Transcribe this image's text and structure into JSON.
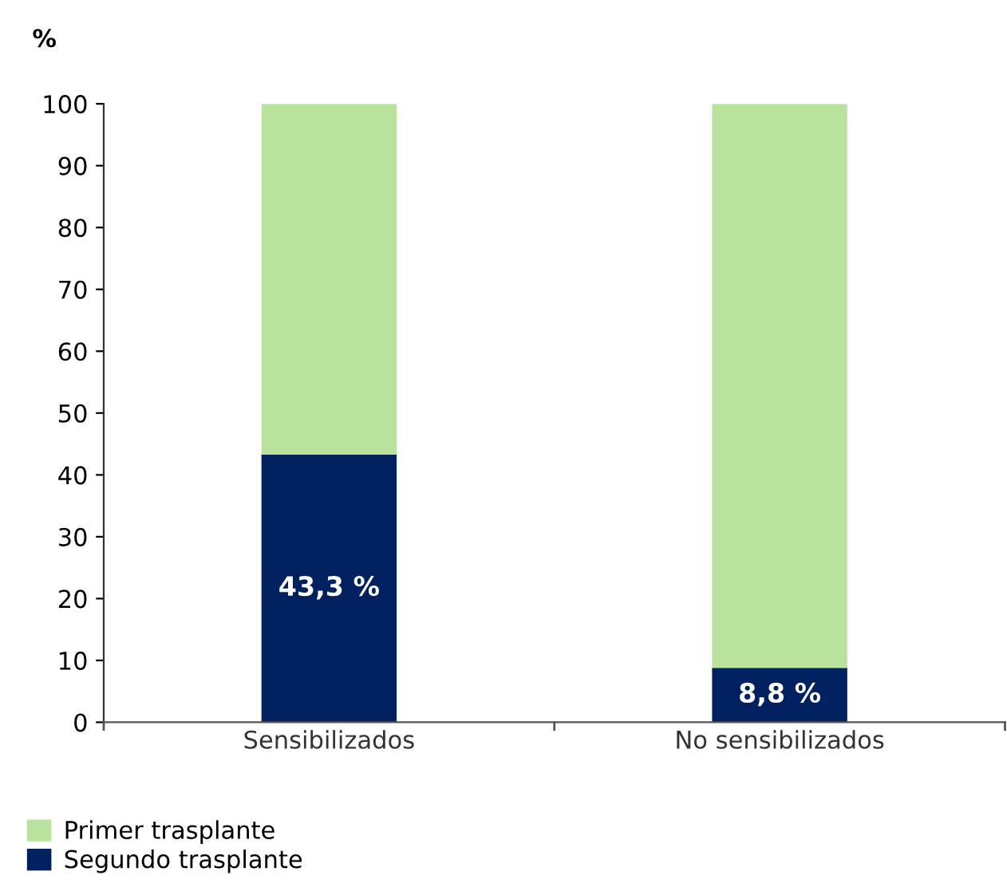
{
  "chart_data": {
    "type": "bar",
    "stacked": true,
    "ylabel": "%",
    "categories": [
      "Sensibilizados",
      "No sensibilizados"
    ],
    "series": [
      {
        "name": "Segundo trasplante",
        "color": "#002060",
        "values": [
          43.3,
          8.8
        ],
        "value_labels": [
          "43,3 %",
          "8,8 %"
        ]
      },
      {
        "name": "Primer trasplante",
        "color": "#b9e39c",
        "values": [
          56.7,
          91.2
        ]
      }
    ],
    "ylim": [
      0,
      100
    ],
    "yticks": [
      0,
      10,
      20,
      30,
      40,
      50,
      60,
      70,
      80,
      90,
      100
    ],
    "grid": false,
    "legend": "bottom left"
  }
}
